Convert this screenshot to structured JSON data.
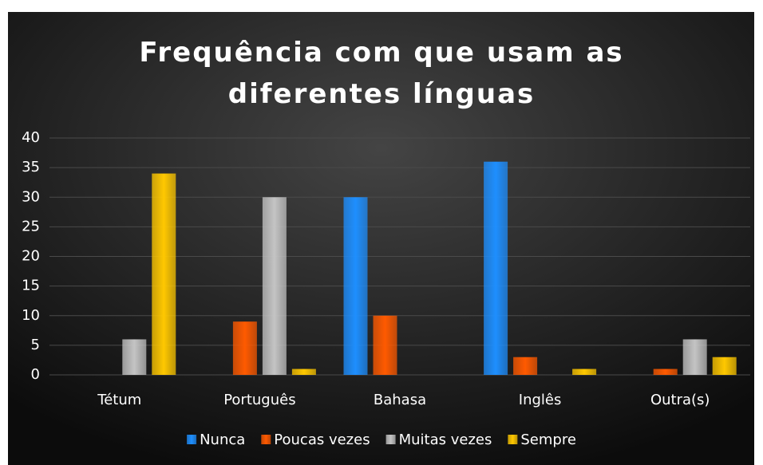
{
  "chart_data": {
    "type": "bar",
    "title": "Frequência com que usam as diferentes línguas",
    "categories": [
      "Tétum",
      "Português",
      "Bahasa",
      "Inglês",
      "Outra(s)"
    ],
    "series": [
      {
        "name": "Nunca",
        "color": "#1e8fff",
        "values": [
          0,
          0,
          30,
          36,
          0
        ]
      },
      {
        "name": "Poucas vezes",
        "color": "#ff5a00",
        "values": [
          0,
          9,
          10,
          3,
          1
        ]
      },
      {
        "name": "Muitas vezes",
        "color": "#c4c4c4",
        "values": [
          6,
          30,
          0,
          0,
          6
        ]
      },
      {
        "name": "Sempre",
        "color": "#ffc800",
        "values": [
          34,
          1,
          0,
          1,
          3
        ]
      }
    ],
    "ylim": [
      0,
      40
    ],
    "yticks": [
      0,
      5,
      10,
      15,
      20,
      25,
      30,
      35,
      40
    ],
    "grid": true,
    "legend": "bottom"
  }
}
